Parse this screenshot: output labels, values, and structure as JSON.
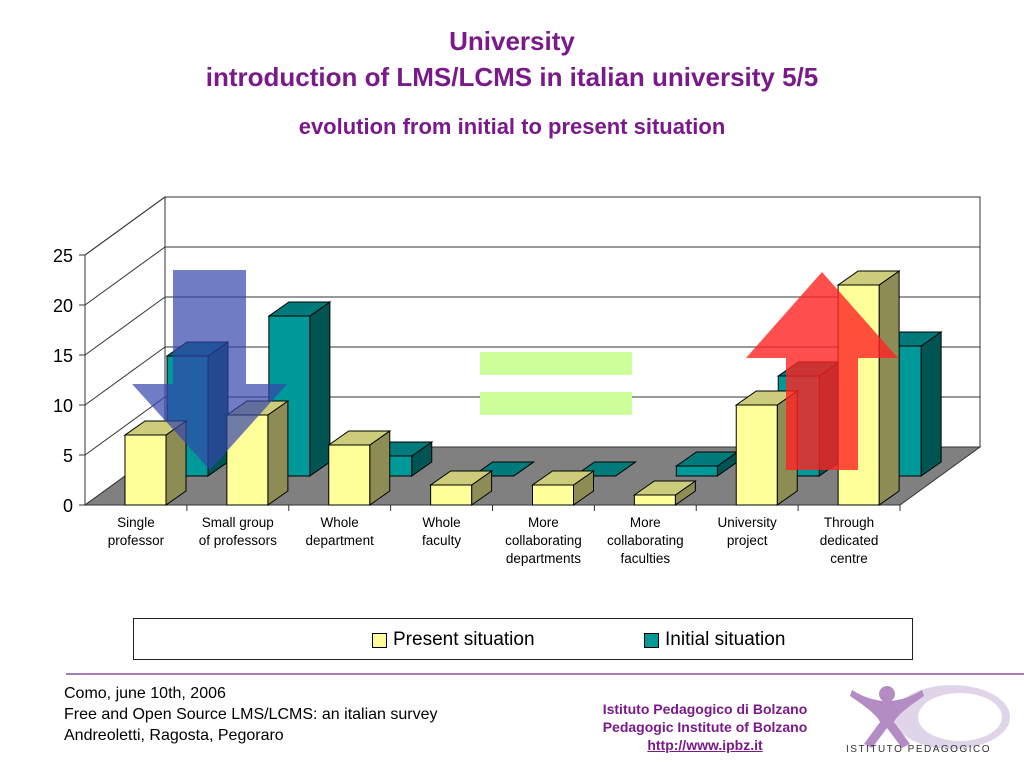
{
  "slide": {
    "title_line1": "University",
    "title_line2": "introduction of LMS/LCMS in italian university 5/5",
    "subtitle": "evolution from initial to present situation"
  },
  "chart_data": {
    "type": "bar",
    "style": "3d-clustered",
    "categories": [
      "Single professor",
      "Small group of professors",
      "Whole department",
      "Whole faculty",
      "More collaborating departments",
      "More collaborating faculties",
      "University project",
      "Through dedicated centre"
    ],
    "category_lines": [
      [
        "Single",
        "professor"
      ],
      [
        "Small group",
        "of professors"
      ],
      [
        "Whole",
        "department"
      ],
      [
        "Whole",
        "faculty"
      ],
      [
        "More",
        "collaborating",
        "departments"
      ],
      [
        "More",
        "collaborating",
        "faculties"
      ],
      [
        "University",
        "project"
      ],
      [
        "Through",
        "dedicated",
        "centre"
      ]
    ],
    "series": [
      {
        "name": "Present situation",
        "color": "#ffff99",
        "values": [
          7,
          9,
          6,
          2,
          2,
          1,
          10,
          22
        ]
      },
      {
        "name": "Initial situation",
        "color": "#009999",
        "values": [
          12,
          16,
          2,
          0,
          0,
          1,
          10,
          13
        ]
      }
    ],
    "ylim": [
      0,
      25
    ],
    "yticks": [
      0,
      5,
      10,
      15,
      20,
      25
    ],
    "legend": "bottom",
    "grid": true
  },
  "annotations": {
    "down_arrow_color": "#3344aa",
    "up_arrow_color": "#ff2222",
    "equal_sign_color": "#ccff99"
  },
  "footer": {
    "line1": "Como, june 10th, 2006",
    "line2": "Free and Open Source LMS/LCMS: an italian survey",
    "line3": "Andreoletti, Ragosta, Pegoraro",
    "inst1": "Istituto Pedagogico di Bolzano",
    "inst2": "Pedagogic Institute of Bolzano",
    "url": "http://www.ipbz.it",
    "logo_text": "ISTITUTO PEDAGOGICO"
  }
}
